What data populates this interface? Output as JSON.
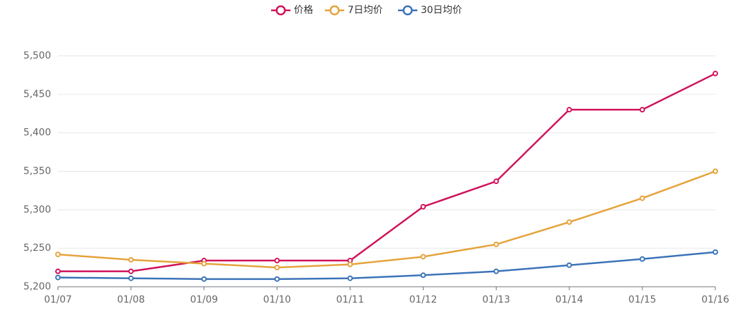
{
  "chart_data": {
    "type": "line",
    "x": [
      "01/07",
      "01/08",
      "01/09",
      "01/10",
      "01/11",
      "01/12",
      "01/13",
      "01/14",
      "01/15",
      "01/16"
    ],
    "series": [
      {
        "name": "价格",
        "color": "#d0115a",
        "values": [
          5220,
          5220,
          5234,
          5234,
          5234,
          5304,
          5337,
          5430,
          5430,
          5477
        ]
      },
      {
        "name": "7日均价",
        "color": "#e5a23a",
        "values": [
          5242,
          5235,
          5230,
          5225,
          5229,
          5239,
          5255,
          5284,
          5315,
          5350
        ]
      },
      {
        "name": "30日均价",
        "color": "#3a72b8",
        "values": [
          5212,
          5211,
          5210,
          5210,
          5211,
          5215,
          5220,
          5228,
          5236,
          5245
        ]
      }
    ],
    "ylim": [
      5200,
      5500
    ],
    "yticks": [
      {
        "value": 5200,
        "label": "5,200"
      },
      {
        "value": 5250,
        "label": "5,250"
      },
      {
        "value": 5300,
        "label": "5,300"
      },
      {
        "value": 5350,
        "label": "5,350"
      },
      {
        "value": 5400,
        "label": "5,400"
      },
      {
        "value": 5450,
        "label": "5,450"
      },
      {
        "value": 5500,
        "label": "5,500"
      }
    ],
    "grid": true,
    "legend": "top"
  }
}
